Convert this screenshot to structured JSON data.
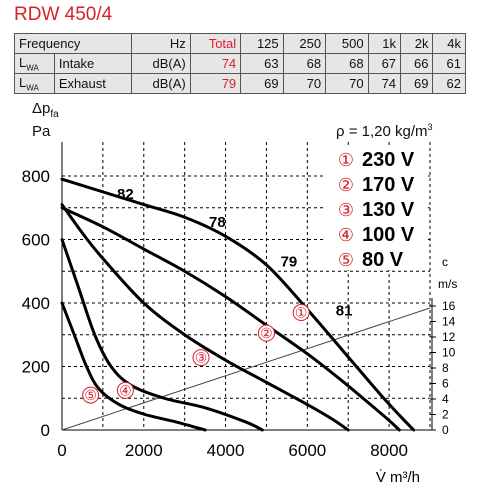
{
  "title": "RDW 450/4",
  "sound_table": {
    "header": [
      "Frequency",
      "",
      "Hz",
      "Total",
      "125",
      "250",
      "500",
      "1k",
      "2k",
      "4k"
    ],
    "rows": [
      {
        "label": "L",
        "label_sub": "WA",
        "kind": "Intake",
        "unit": "dB(A)",
        "total": "74",
        "values": [
          "63",
          "68",
          "68",
          "67",
          "66",
          "61"
        ]
      },
      {
        "label": "L",
        "label_sub": "WA",
        "kind": "Exhaust",
        "unit": "dB(A)",
        "total": "79",
        "values": [
          "69",
          "70",
          "70",
          "74",
          "69",
          "62"
        ]
      }
    ]
  },
  "density": {
    "prefix": "ρ = 1,20 kg/m",
    "sup": "3"
  },
  "ylabel": {
    "line1": "Δp",
    "sub": "fa",
    "line2": "Pa"
  },
  "xlabel": "V̇ m³/h",
  "velocity_axis_unit": [
    "c",
    "m/s"
  ],
  "colors": {
    "accent": "#d6202a",
    "grid": "#000000",
    "curve": "#000000"
  },
  "chart_data": {
    "type": "line",
    "xlim": [
      0,
      9000
    ],
    "ylim": [
      0,
      850
    ],
    "x_ticks": [
      0,
      2000,
      4000,
      6000,
      8000
    ],
    "y_ticks": [
      0,
      200,
      400,
      600,
      800
    ],
    "velocity_ticks": [
      0,
      2,
      4,
      6,
      8,
      10,
      12,
      14,
      16
    ],
    "velocity_line": {
      "x": [
        0,
        9000
      ],
      "y": [
        0,
        420
      ]
    },
    "series": [
      {
        "name": "230 V",
        "marker": "①",
        "x": [
          0,
          1000,
          2000,
          3000,
          4000,
          5000,
          6000,
          7000,
          7800,
          8300,
          8600
        ],
        "y": [
          790,
          750,
          710,
          670,
          610,
          520,
          380,
          230,
          110,
          40,
          0
        ]
      },
      {
        "name": "170 V",
        "marker": "②",
        "x": [
          0,
          1000,
          2000,
          3000,
          4000,
          5000,
          6000,
          6800,
          7500,
          8000,
          8250
        ],
        "y": [
          700,
          640,
          570,
          500,
          420,
          330,
          240,
          160,
          85,
          30,
          0
        ]
      },
      {
        "name": "130 V",
        "marker": "③",
        "x": [
          0,
          500,
          1000,
          2000,
          3000,
          4000,
          5000,
          6000,
          6600,
          7000
        ],
        "y": [
          710,
          620,
          540,
          400,
          300,
          220,
          150,
          80,
          35,
          0
        ]
      },
      {
        "name": "100 V",
        "marker": "④",
        "x": [
          0,
          400,
          800,
          1200,
          1700,
          2500,
          3500,
          4500,
          4900
        ],
        "y": [
          600,
          450,
          300,
          200,
          140,
          100,
          70,
          25,
          0
        ]
      },
      {
        "name": "80 V",
        "marker": "⑤",
        "x": [
          0,
          300,
          600,
          900,
          1400,
          2000,
          2800,
          3500
        ],
        "y": [
          400,
          300,
          200,
          130,
          80,
          50,
          25,
          0
        ]
      }
    ],
    "marker_positions": [
      {
        "marker": "①",
        "x": 5850,
        "y": 370
      },
      {
        "marker": "②",
        "x": 5000,
        "y": 305
      },
      {
        "marker": "③",
        "x": 3400,
        "y": 228
      },
      {
        "marker": "④",
        "x": 1550,
        "y": 125
      },
      {
        "marker": "⑤",
        "x": 700,
        "y": 110
      }
    ],
    "sound_labels": [
      {
        "text": "82",
        "x": 1550,
        "y": 728
      },
      {
        "text": "78",
        "x": 3800,
        "y": 640
      },
      {
        "text": "79",
        "x": 5550,
        "y": 515
      },
      {
        "text": "81",
        "x": 6900,
        "y": 360
      }
    ],
    "legend": [
      {
        "marker": "①",
        "label": "230 V"
      },
      {
        "marker": "②",
        "label": "170 V"
      },
      {
        "marker": "③",
        "label": "130 V"
      },
      {
        "marker": "④",
        "label": "100 V"
      },
      {
        "marker": "⑤",
        "label": "80 V"
      }
    ],
    "legend_position": "top-right",
    "grid": true
  }
}
